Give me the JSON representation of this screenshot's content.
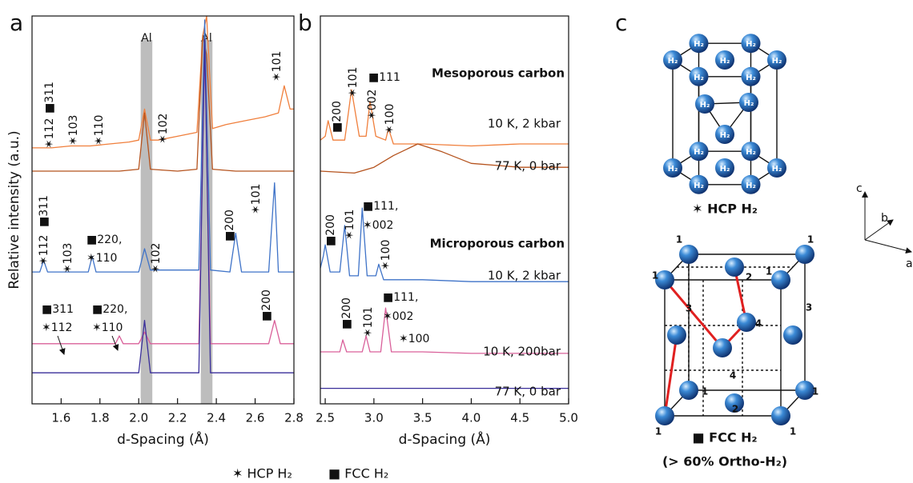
{
  "chart_data": [
    {
      "type": "line",
      "panel_label": "a",
      "x_label": "d-Spacing (Å)",
      "y_label": "Relative intensity (a.u.)",
      "xlim": [
        1.45,
        2.8
      ],
      "ylim": [
        0,
        100
      ],
      "xticks": [
        1.6,
        1.8,
        {
          "value": 2,
          "label": "2.0"
        },
        2.2,
        2.4,
        2.6,
        2.8
      ],
      "bands": [
        {
          "range": [
            2.01,
            2.07
          ],
          "label": "Al"
        },
        {
          "range": [
            2.32,
            2.38
          ],
          "label": "Al"
        }
      ],
      "series": [
        {
          "color": "#f07f3c",
          "x": [
            1.45,
            1.55,
            1.65,
            1.75,
            1.85,
            1.95,
            2.0,
            2.03,
            2.06,
            2.1,
            2.2,
            2.3,
            2.33,
            2.35,
            2.38,
            2.45,
            2.55,
            2.65,
            2.72,
            2.75,
            2.78,
            2.8
          ],
          "values": [
            66,
            66,
            66.5,
            66.5,
            67,
            67.5,
            68,
            76,
            68,
            68,
            69,
            70,
            95,
            100,
            71,
            72,
            73,
            74,
            75,
            82,
            76,
            76
          ]
        },
        {
          "color": "#b5531e",
          "x": [
            1.45,
            1.9,
            2.0,
            2.03,
            2.06,
            2.2,
            2.3,
            2.33,
            2.35,
            2.38,
            2.5,
            2.8
          ],
          "values": [
            60,
            60,
            60.5,
            75,
            60.5,
            60,
            60.5,
            95,
            90,
            60.5,
            60,
            60
          ]
        },
        {
          "color": "#3f73c8",
          "x": [
            1.45,
            1.49,
            1.51,
            1.53,
            1.74,
            1.76,
            1.78,
            2.0,
            2.03,
            2.06,
            2.31,
            2.34,
            2.37,
            2.47,
            2.5,
            2.53,
            2.67,
            2.7,
            2.72,
            2.8
          ],
          "values": [
            34,
            34,
            37,
            34,
            34,
            38,
            34,
            34,
            40,
            34.5,
            34.5,
            99,
            34.5,
            34,
            44,
            34,
            34,
            57,
            34,
            34
          ]
        },
        {
          "color": "#d9609a",
          "x": [
            1.45,
            1.88,
            1.9,
            1.92,
            2.0,
            2.03,
            2.06,
            2.31,
            2.34,
            2.37,
            2.67,
            2.7,
            2.73,
            2.8
          ],
          "values": [
            15.5,
            15.5,
            17.5,
            15.5,
            15.5,
            18.5,
            15.5,
            15.5,
            92,
            15.5,
            15.5,
            21.5,
            15.5,
            15.5
          ]
        },
        {
          "color": "#3a2f9a",
          "x": [
            1.45,
            2.0,
            2.03,
            2.06,
            2.31,
            2.34,
            2.37,
            2.8
          ],
          "values": [
            8,
            8,
            21.5,
            8,
            8,
            94,
            8,
            8
          ]
        }
      ],
      "annotations": [
        "✶101",
        "✶112",
        "■311",
        "✶103",
        "✶110",
        "✶102",
        "✶112",
        "■311",
        "✶103",
        "■220,",
        "✶110",
        "✶102",
        "■200",
        "✶101",
        "■311",
        "✶112",
        "■220,",
        "✶110",
        "■200"
      ]
    },
    {
      "type": "line",
      "panel_label": "b",
      "x_label": "d-Spacing (Å)",
      "xlim": [
        2.45,
        5.0
      ],
      "ylim": [
        0,
        100
      ],
      "xticks": [
        2.5,
        {
          "value": 3,
          "label": "3.0"
        },
        3.5,
        {
          "value": 4,
          "label": "4.0"
        },
        4.5,
        {
          "value": 5,
          "label": "5.0"
        }
      ],
      "group_labels": [
        {
          "text": "Mesoporous carbon",
          "color": "#c0561c"
        },
        {
          "text": "Microporous carbon",
          "color": "#3a5fb8"
        }
      ],
      "series": [
        {
          "name": "10 K, 2 kbar",
          "color": "#f07f3c",
          "x": [
            2.45,
            2.5,
            2.53,
            2.58,
            2.7,
            2.77,
            2.85,
            2.92,
            2.96,
            3.02,
            3.12,
            3.15,
            3.2,
            3.5,
            4.0,
            4.5,
            5.0
          ],
          "values": [
            68,
            69,
            73,
            68,
            68,
            81,
            69,
            69,
            78,
            69,
            68,
            71,
            67,
            67,
            66.5,
            67,
            67
          ]
        },
        {
          "name": "77 K, 0 bar",
          "color": "#b5531e",
          "x": [
            2.45,
            2.8,
            3.0,
            3.2,
            3.45,
            3.7,
            4.0,
            4.5,
            5.0
          ],
          "values": [
            60,
            59.5,
            61,
            64,
            67,
            65,
            62,
            61,
            61
          ]
        },
        {
          "name": "10 K, 2 kbar",
          "color": "#3f73c8",
          "x": [
            2.45,
            2.48,
            2.5,
            2.55,
            2.65,
            2.7,
            2.75,
            2.84,
            2.88,
            2.93,
            3.02,
            3.05,
            3.1,
            3.5,
            4.0,
            4.5,
            5.0
          ],
          "values": [
            35,
            38,
            41,
            34,
            34,
            46,
            33,
            33,
            50.5,
            33,
            33,
            36,
            32,
            32,
            31.5,
            31.5,
            31.5
          ]
        },
        {
          "name": "10 K, 200bar",
          "color": "#d9609a",
          "x": [
            2.45,
            2.65,
            2.68,
            2.72,
            2.88,
            2.92,
            2.96,
            3.07,
            3.12,
            3.18,
            3.5,
            4.0,
            5.0
          ],
          "values": [
            13.4,
            13.4,
            16.5,
            13.4,
            13.4,
            17.5,
            13.4,
            13.4,
            24.7,
            13.4,
            13.4,
            13,
            13
          ]
        },
        {
          "name": "77 K, 0 bar",
          "color": "#3a2f9a",
          "x": [
            2.45,
            3.0,
            4.0,
            5.0
          ],
          "values": [
            4,
            4,
            4,
            4
          ]
        }
      ],
      "annotations": [
        "■200",
        "✶101",
        "■111",
        "✶002",
        "✶100",
        "■200",
        "✶101",
        "■111,",
        "✶002",
        "✶100",
        "■200",
        "✶101",
        "■111,",
        "✶002",
        "✶100"
      ]
    }
  ],
  "legend": [
    "✶ HCP H₂",
    "■ FCC H₂"
  ],
  "panel_c": {
    "panel_label": "c",
    "hcp_caption": "✶ HCP H₂",
    "fcc_caption": "■ FCC H₂",
    "fcc_note": "(> 60% Ortho-H₂)",
    "hcp_labels": [
      "H₂",
      "H₂",
      "H₂",
      "H₂",
      "H₂",
      "H₂",
      "H₂",
      "H₂",
      "H₂",
      "H₂",
      "H₂",
      "H₂",
      "H₂",
      "H₂",
      "H₂",
      "H₂",
      "H₂"
    ],
    "fcc_labels": [
      "1",
      "1",
      "1",
      "1",
      "2",
      "3",
      "3",
      "4",
      "4",
      "1",
      "1",
      "2",
      "1",
      "1"
    ],
    "axes": [
      "c",
      "b",
      "a"
    ]
  }
}
